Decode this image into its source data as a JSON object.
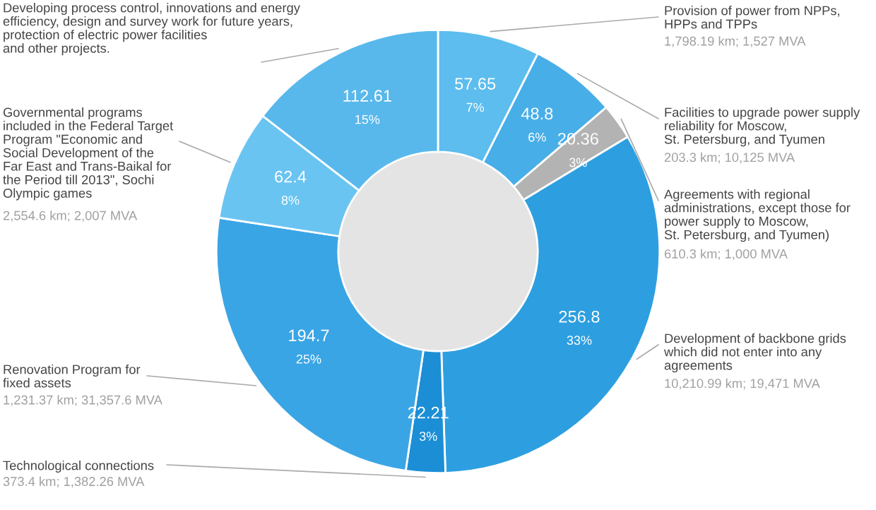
{
  "chart_data": {
    "type": "donut",
    "categories": [
      "Provision of power from NPPs,\nHPPs and TPPs",
      "Facilities to upgrade power supply\nreliability for Moscow,\nSt. Petersburg, and Tyumen",
      "Agreements with regional\nadministrations, except those for\npower supply to Moscow,\nSt. Petersburg, and Tyumen)",
      "Development of backbone grids\nwhich did not enter into any\nagreements",
      "Technological connections",
      "Renovation Program for\nfixed assets",
      "Governmental programs\nincluded in the Federal Target\nProgram \"Economic and\nSocial Development of the\nFar East and Trans-Baikal for\nthe Period till 2013\", Sochi\nOlympic games",
      "Developing process control, innovations and energy\nefficiency, design and survey work for future years,\nprotection of electric power facilities\nand other projects."
    ],
    "values": [
      57.65,
      48.8,
      20.36,
      256.8,
      22.21,
      194.7,
      62.4,
      112.61
    ],
    "value_labels": [
      "57.65\n7%",
      "48.8\n6%",
      "20.36\n3%",
      "256.8\n33%",
      "22.21\n3%",
      "194.7\n25%",
      "62.4\n8%",
      "112.61\n15%"
    ],
    "colors": [
      "#5cbdee",
      "#48aee8",
      "#b3b3b3",
      "#2d9fe0",
      "#1c8ed6",
      "#3aa5e5",
      "#6ac4f1",
      "#58b8ec"
    ],
    "annotations": [
      "1,798.19 km; 1,527 MVA",
      "203.3 km; 10,125 MVA",
      "610.3 km; 1,000 MVA",
      "10,210.99 km; 19,471 MVA",
      "373.4 km; 1,382.26 MVA",
      "1,231.37 km; 31,357.6 MVA",
      "2,554.6 km; 2,007 MVA",
      null
    ],
    "legend": false
  }
}
